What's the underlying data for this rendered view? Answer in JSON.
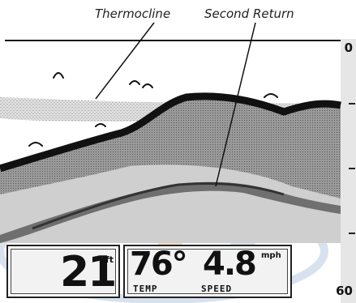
{
  "callouts": {
    "thermocline": "Thermocline",
    "second_return": "Second Return"
  },
  "depth_scale": {
    "top": "0",
    "bottom": "60"
  },
  "readouts": {
    "depth": {
      "value": "21",
      "unit": "ft"
    },
    "temperature": {
      "value": "76°",
      "label": "TEMP"
    },
    "speed": {
      "value": "4.8",
      "unit": "mph",
      "label": "SPEED"
    }
  },
  "colors": {
    "bottom_dark": "#111111",
    "bottom_gray": "#8a8a8a",
    "bottom_light": "#c9c9c9",
    "watermark_blue": "#c8d6e8",
    "watermark_orange": "#f3c9a0",
    "readout_bg": "#f2f2f2"
  },
  "icons": {
    "fish": "fish-arch-icon"
  }
}
